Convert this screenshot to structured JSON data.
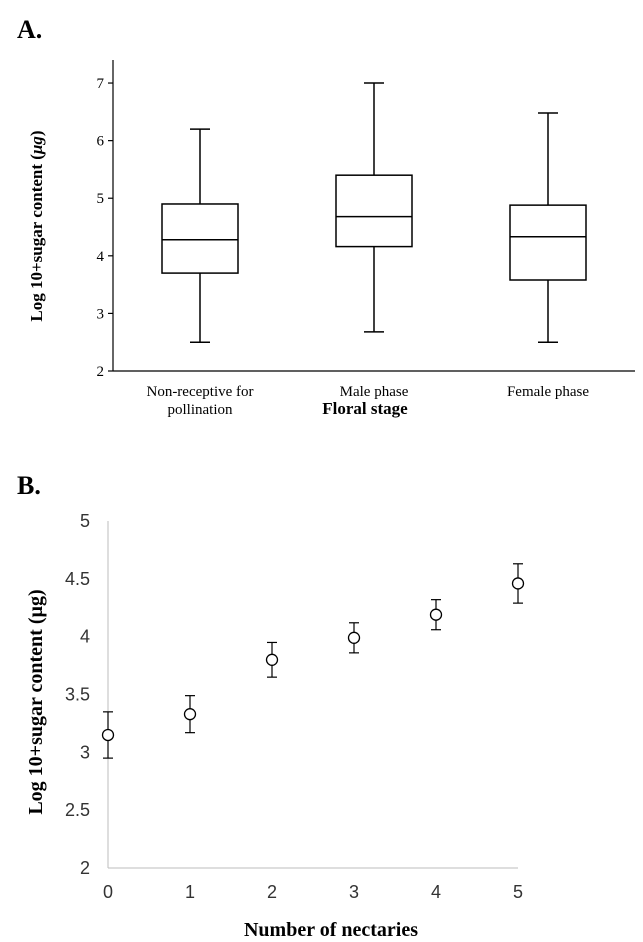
{
  "chart_data": [
    {
      "panel_label": "A.",
      "type": "boxplot",
      "xlabel": "Floral stage",
      "ylabel_prefix": "Log 10+sugar content (",
      "ylabel_unit": "μg",
      "ylabel_suffix": ")",
      "ylim": [
        2,
        7.4
      ],
      "yticks": [
        "2",
        "3",
        "4",
        "5",
        "6",
        "7"
      ],
      "categories": [
        {
          "lines": [
            "Non-receptive for",
            "pollination"
          ]
        },
        {
          "lines": [
            "Male phase"
          ]
        },
        {
          "lines": [
            "Female phase"
          ]
        }
      ],
      "boxes": [
        {
          "min": 2.5,
          "q1": 3.7,
          "median": 4.28,
          "q3": 4.9,
          "max": 6.2
        },
        {
          "min": 2.68,
          "q1": 4.16,
          "median": 4.68,
          "q3": 5.4,
          "max": 7.0
        },
        {
          "min": 2.5,
          "q1": 3.58,
          "median": 4.33,
          "q3": 4.88,
          "max": 6.48
        }
      ],
      "grid": false
    },
    {
      "panel_label": "B.",
      "type": "scatter",
      "xlabel": "Number of nectaries",
      "ylabel": "Log 10+sugar content (µg)",
      "xlim": [
        0,
        5
      ],
      "ylim": [
        2,
        5
      ],
      "xticks": [
        "0",
        "1",
        "2",
        "3",
        "4",
        "5"
      ],
      "yticks": [
        "2",
        "2.5",
        "3",
        "3.5",
        "4",
        "4.5",
        "5"
      ],
      "points": [
        {
          "x": 0,
          "y": 3.15,
          "err_low": 2.95,
          "err_high": 3.35
        },
        {
          "x": 1,
          "y": 3.33,
          "err_low": 3.17,
          "err_high": 3.49
        },
        {
          "x": 2,
          "y": 3.8,
          "err_low": 3.65,
          "err_high": 3.95
        },
        {
          "x": 3,
          "y": 3.99,
          "err_low": 3.86,
          "err_high": 4.12
        },
        {
          "x": 4,
          "y": 4.19,
          "err_low": 4.06,
          "err_high": 4.32
        },
        {
          "x": 5,
          "y": 4.46,
          "err_low": 4.29,
          "err_high": 4.63
        }
      ],
      "grid": false
    }
  ]
}
